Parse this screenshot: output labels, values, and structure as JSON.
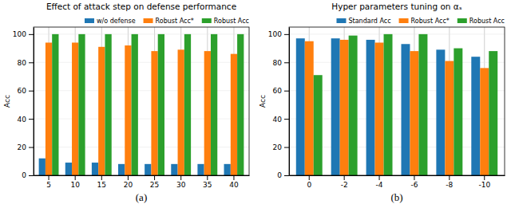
{
  "chart_data": [
    {
      "type": "bar",
      "title": "Effect of attack step on defense performance",
      "caption": "(a)",
      "y_label": "Acc",
      "categories": [
        "5",
        "10",
        "15",
        "20",
        "25",
        "30",
        "35",
        "40"
      ],
      "series": [
        {
          "name": "w/o defense",
          "color": "#1f77b4",
          "values": [
            12,
            9,
            9,
            8,
            8,
            8,
            8,
            8
          ]
        },
        {
          "name": "Robust Acc*",
          "color": "#ff7f0e",
          "values": [
            94,
            94,
            91,
            92,
            88,
            89,
            88,
            86
          ]
        },
        {
          "name": "Robust Acc",
          "color": "#2ca02c",
          "values": [
            100,
            100,
            100,
            100,
            100,
            100,
            100,
            100
          ]
        }
      ],
      "ylim": [
        0,
        105
      ],
      "yticks": [
        0,
        20,
        40,
        60,
        80,
        100
      ],
      "grid": true,
      "legend": "upper right"
    },
    {
      "type": "bar",
      "title": "Hyper parameters tuning on αₛ",
      "caption": "(b)",
      "y_label": "Acc",
      "categories": [
        "0",
        "-2",
        "-4",
        "-6",
        "-8",
        "-10"
      ],
      "series": [
        {
          "name": "Standard Acc",
          "color": "#1f77b4",
          "values": [
            97,
            97,
            96,
            93,
            89,
            84
          ]
        },
        {
          "name": "Robust Acc*",
          "color": "#ff7f0e",
          "values": [
            95,
            96,
            94,
            88,
            81,
            76
          ]
        },
        {
          "name": "Robust Acc",
          "color": "#2ca02c",
          "values": [
            71,
            99,
            100,
            100,
            90,
            88
          ]
        }
      ],
      "ylim": [
        0,
        105
      ],
      "yticks": [
        0,
        20,
        40,
        60,
        80,
        100
      ],
      "grid": true,
      "legend": "upper right"
    }
  ]
}
